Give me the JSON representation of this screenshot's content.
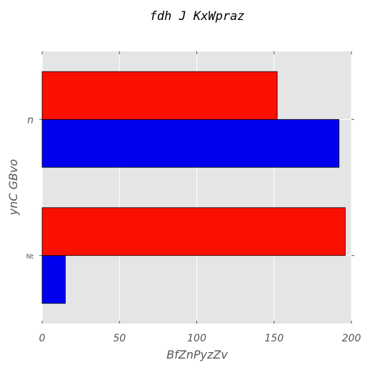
{
  "chart_data": {
    "type": "bar",
    "orientation": "horizontal",
    "title": "fdh J KxWpraz",
    "xlabel": "BfZnPyzZv",
    "ylabel": "ynC GBvo",
    "categories": [
      "Nt",
      "n"
    ],
    "series": [
      {
        "color": "#0000ee",
        "values": [
          15,
          192
        ]
      },
      {
        "color": "#fa1000",
        "values": [
          196,
          152
        ]
      }
    ],
    "xlim": [
      0,
      200
    ],
    "xticks": [
      0,
      50,
      100,
      150,
      200
    ],
    "grid": true,
    "legend": "none",
    "background": "#e5e5e5"
  }
}
